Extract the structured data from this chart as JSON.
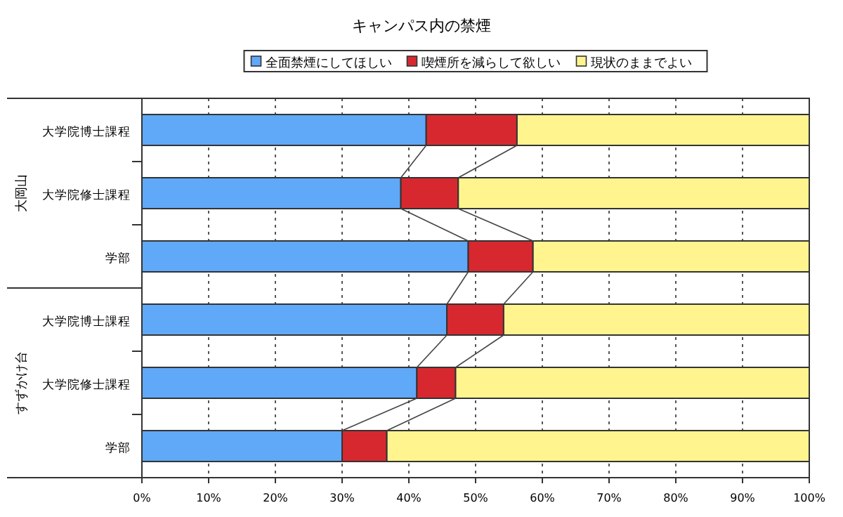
{
  "chart_data": {
    "type": "bar",
    "orientation": "horizontal",
    "stacked": true,
    "title": "キャンパス内の禁煙",
    "categories": [
      "大学院博士課程",
      "大学院修士課程",
      "学部",
      "大学院博士課程",
      "大学院修士課程",
      "学部"
    ],
    "annotations": [
      "大岡山",
      "すずかけ台"
    ],
    "series": [
      {
        "name": "全面禁煙にしてほしい",
        "color": "#60a8f8",
        "values": [
          42.6,
          38.8,
          48.9,
          45.7,
          41.2,
          30.0
        ]
      },
      {
        "name": "喫煙所を減らして欲しい",
        "color": "#d8282f",
        "values": [
          13.6,
          8.6,
          9.7,
          8.5,
          5.8,
          6.7
        ]
      },
      {
        "name": "現状のままでよい",
        "color": "#fff48e",
        "values": [
          43.8,
          52.6,
          41.4,
          45.8,
          53.0,
          63.3
        ]
      }
    ],
    "xlim": [
      0,
      100
    ],
    "xticks": [
      {
        "value": 0,
        "label": "0%"
      },
      {
        "value": 10,
        "label": "10%"
      },
      {
        "value": 20,
        "label": "20%"
      },
      {
        "value": 30,
        "label": "30%"
      },
      {
        "value": 40,
        "label": "40%"
      },
      {
        "value": 50,
        "label": "50%"
      },
      {
        "value": 60,
        "label": "60%"
      },
      {
        "value": 70,
        "label": "70%"
      },
      {
        "value": 80,
        "label": "80%"
      },
      {
        "value": 90,
        "label": "90%"
      },
      {
        "value": 100,
        "label": "100%"
      }
    ],
    "grid": "x",
    "legend": "top"
  }
}
